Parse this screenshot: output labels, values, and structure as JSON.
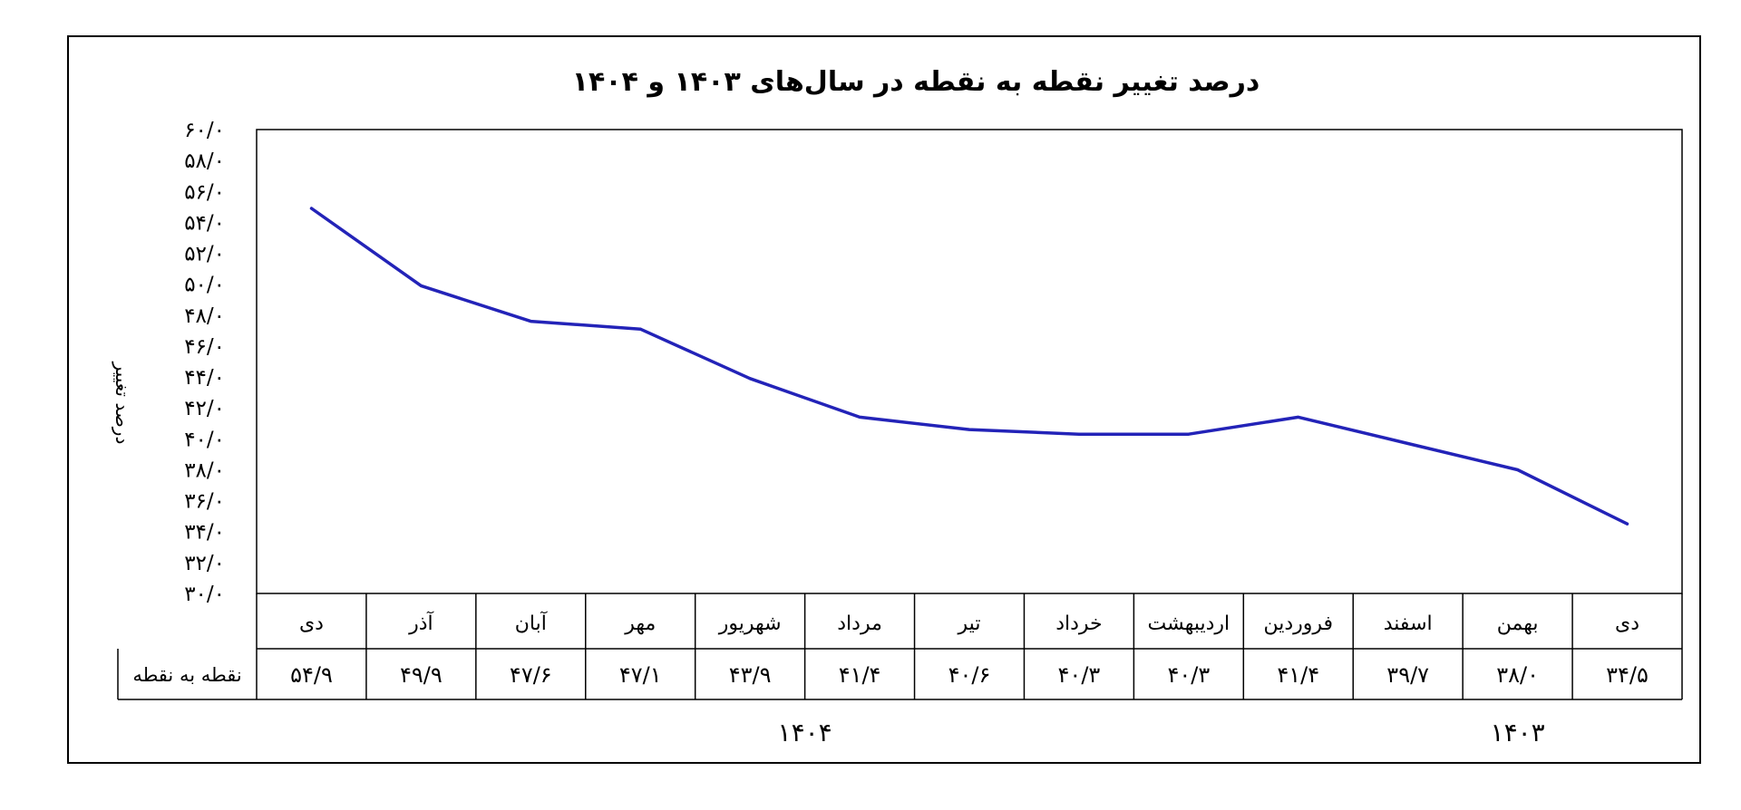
{
  "chart_data": {
    "type": "line",
    "title": "درصد تغییر نقطه به نقطه در سال‌های ۱۴۰۳ و ۱۴۰۴",
    "xlabel": "",
    "ylabel": "درصد تغییر",
    "ylim": [
      30,
      60
    ],
    "yticks": [
      30,
      32,
      34,
      36,
      38,
      40,
      42,
      44,
      46,
      48,
      50,
      52,
      54,
      56,
      58,
      60
    ],
    "ytick_labels": [
      "۳۰/۰",
      "۳۲/۰",
      "۳۴/۰",
      "۳۶/۰",
      "۳۸/۰",
      "۴۰/۰",
      "۴۲/۰",
      "۴۴/۰",
      "۴۶/۰",
      "۴۸/۰",
      "۵۰/۰",
      "۵۲/۰",
      "۵۴/۰",
      "۵۶/۰",
      "۵۸/۰",
      "۶۰/۰"
    ],
    "grid": false,
    "legend": "none",
    "line_color": "#2323b8",
    "categories": [
      "دی",
      "بهمن",
      "اسفند",
      "فروردین",
      "اردیبهشت",
      "خرداد",
      "تیر",
      "مرداد",
      "شهریور",
      "مهر",
      "آبان",
      "آذر",
      "دی"
    ],
    "values": [
      34.5,
      38.0,
      39.7,
      41.4,
      40.3,
      40.3,
      40.6,
      41.4,
      43.9,
      47.1,
      47.6,
      49.9,
      54.9
    ],
    "value_labels": [
      "۳۴/۵",
      "۳۸/۰",
      "۳۹/۷",
      "۴۱/۴",
      "۴۰/۳",
      "۴۰/۳",
      "۴۰/۶",
      "۴۱/۴",
      "۴۳/۹",
      "۴۷/۱",
      "۴۷/۶",
      "۴۹/۹",
      "۵۴/۹"
    ],
    "table_row_label": "نقطه به نقطه",
    "year_groups": [
      {
        "label": "۱۴۰۳",
        "count": 3
      },
      {
        "label": "۱۴۰۴",
        "count": 10
      }
    ]
  }
}
